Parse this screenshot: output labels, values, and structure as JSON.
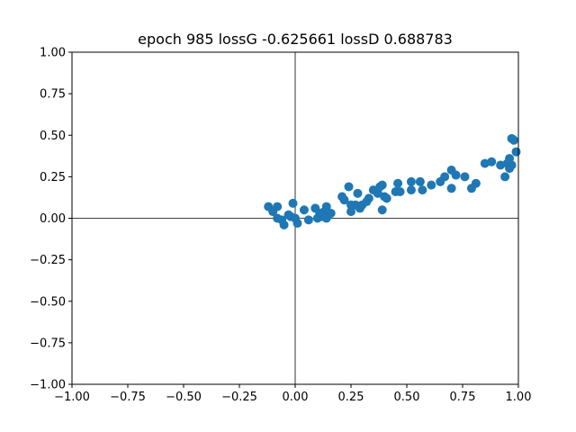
{
  "chart_data": {
    "type": "scatter",
    "title": "epoch 985 lossG -0.625661 lossD 0.688783",
    "xlabel": "",
    "ylabel": "",
    "xlim": [
      -1.0,
      1.0
    ],
    "ylim": [
      -1.0,
      1.0
    ],
    "xticks": [
      "−1.00",
      "−0.75",
      "−0.50",
      "−0.25",
      "0.00",
      "0.25",
      "0.50",
      "0.75",
      "1.00"
    ],
    "yticks": [
      "−1.00",
      "−0.75",
      "−0.50",
      "−0.25",
      "0.00",
      "0.25",
      "0.50",
      "0.75",
      "1.00"
    ],
    "grid": false,
    "reference_lines": {
      "x": 0,
      "y": 0
    },
    "color": "#1f77b4",
    "series": [
      {
        "points": [
          [
            -0.12,
            0.07
          ],
          [
            -0.1,
            0.04
          ],
          [
            -0.08,
            0.07
          ],
          [
            -0.08,
            0.0
          ],
          [
            -0.06,
            -0.01
          ],
          [
            -0.05,
            -0.04
          ],
          [
            -0.03,
            0.02
          ],
          [
            -0.02,
            0.01
          ],
          [
            -0.01,
            0.09
          ],
          [
            0.0,
            0.0
          ],
          [
            0.01,
            -0.03
          ],
          [
            0.04,
            0.05
          ],
          [
            0.06,
            -0.01
          ],
          [
            0.09,
            0.06
          ],
          [
            0.1,
            0.0
          ],
          [
            0.11,
            0.03
          ],
          [
            0.12,
            0.01
          ],
          [
            0.13,
            0.04
          ],
          [
            0.14,
            0.07
          ],
          [
            0.14,
            0.0
          ],
          [
            0.16,
            0.03
          ],
          [
            0.21,
            0.13
          ],
          [
            0.22,
            0.11
          ],
          [
            0.24,
            0.19
          ],
          [
            0.25,
            0.04
          ],
          [
            0.25,
            0.08
          ],
          [
            0.27,
            0.08
          ],
          [
            0.28,
            0.15
          ],
          [
            0.29,
            0.06
          ],
          [
            0.3,
            0.08
          ],
          [
            0.32,
            0.1
          ],
          [
            0.33,
            0.12
          ],
          [
            0.35,
            0.17
          ],
          [
            0.37,
            0.15
          ],
          [
            0.38,
            0.19
          ],
          [
            0.39,
            0.05
          ],
          [
            0.39,
            0.2
          ],
          [
            0.4,
            0.13
          ],
          [
            0.41,
            0.12
          ],
          [
            0.45,
            0.16
          ],
          [
            0.46,
            0.21
          ],
          [
            0.47,
            0.16
          ],
          [
            0.52,
            0.22
          ],
          [
            0.52,
            0.17
          ],
          [
            0.56,
            0.22
          ],
          [
            0.57,
            0.17
          ],
          [
            0.61,
            0.2
          ],
          [
            0.65,
            0.22
          ],
          [
            0.67,
            0.25
          ],
          [
            0.7,
            0.29
          ],
          [
            0.7,
            0.18
          ],
          [
            0.72,
            0.26
          ],
          [
            0.76,
            0.25
          ],
          [
            0.79,
            0.18
          ],
          [
            0.81,
            0.21
          ],
          [
            0.85,
            0.33
          ],
          [
            0.88,
            0.34
          ],
          [
            0.92,
            0.32
          ],
          [
            0.94,
            0.25
          ],
          [
            0.95,
            0.33
          ],
          [
            0.96,
            0.3
          ],
          [
            0.96,
            0.36
          ],
          [
            0.97,
            0.32
          ],
          [
            0.97,
            0.48
          ],
          [
            0.98,
            0.47
          ],
          [
            0.99,
            0.4
          ]
        ]
      }
    ]
  }
}
